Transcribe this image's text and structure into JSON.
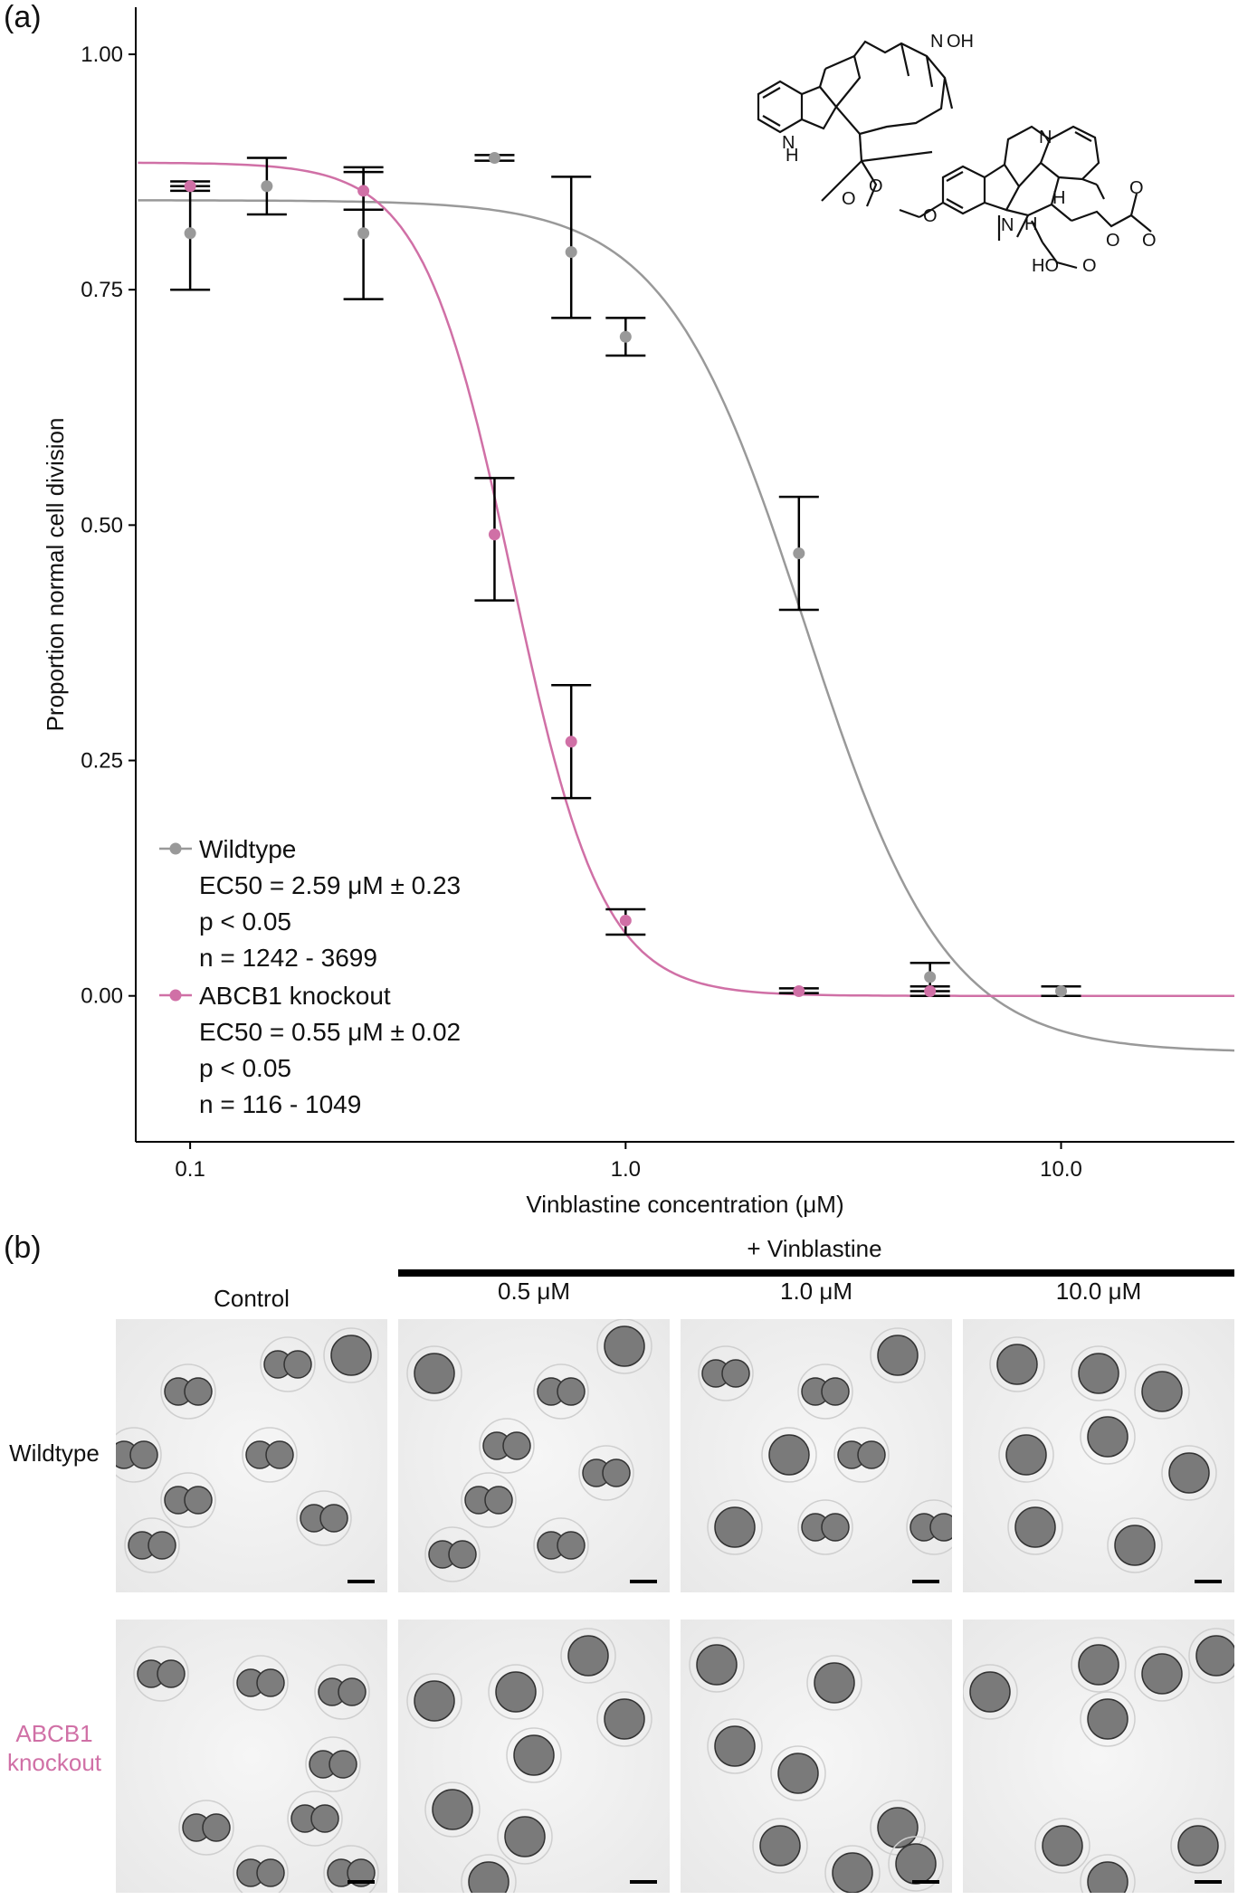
{
  "panel_a_label": "(a)",
  "panel_b_label": "(b)",
  "chart_data": {
    "type": "scatter",
    "xscale": "log",
    "xlabel": "Vinblastine concentration (μM)",
    "ylabel": "Proportion normal cell division",
    "xlim": [
      0.075,
      25
    ],
    "ylim": [
      -0.155,
      1.05
    ],
    "x_ticks": [
      0.1,
      1.0,
      10.0
    ],
    "x_tick_labels": [
      "0.1",
      "1.0",
      "10.0"
    ],
    "y_ticks": [
      0.0,
      0.25,
      0.5,
      0.75,
      1.0
    ],
    "y_tick_labels": [
      "0.00",
      "0.25",
      "0.50",
      "0.75",
      "1.00"
    ],
    "grid": false,
    "legend_position": "bottom-left",
    "series": [
      {
        "name": "Wildtype",
        "color": "#999999",
        "points": [
          {
            "x": 0.1,
            "y": 0.81,
            "lo": 0.75,
            "hi": 0.86
          },
          {
            "x": 0.15,
            "y": 0.86,
            "lo": 0.83,
            "hi": 0.89
          },
          {
            "x": 0.25,
            "y": 0.81,
            "lo": 0.74,
            "hi": 0.88
          },
          {
            "x": 0.5,
            "y": 0.89,
            "lo": 0.887,
            "hi": 0.893
          },
          {
            "x": 0.75,
            "y": 0.79,
            "lo": 0.72,
            "hi": 0.87
          },
          {
            "x": 1.0,
            "y": 0.7,
            "lo": 0.68,
            "hi": 0.72
          },
          {
            "x": 2.5,
            "y": 0.47,
            "lo": 0.41,
            "hi": 0.53
          },
          {
            "x": 5.0,
            "y": 0.02,
            "lo": 0.005,
            "hi": 0.035
          },
          {
            "x": 10.0,
            "y": 0.005,
            "lo": 0.0,
            "hi": 0.01
          }
        ],
        "fit": {
          "top": 0.845,
          "bottom": -0.06,
          "ec50": 2.59,
          "hill": 2.7
        },
        "legend_lines": [
          "EC50 = 2.59 μM ± 0.23",
          "p < 0.05",
          "n = 1242 - 3699"
        ]
      },
      {
        "name": "ABCB1 knockout",
        "color": "#d070a6",
        "points": [
          {
            "x": 0.1,
            "y": 0.86,
            "lo": 0.855,
            "hi": 0.865
          },
          {
            "x": 0.25,
            "y": 0.855,
            "lo": 0.835,
            "hi": 0.875
          },
          {
            "x": 0.5,
            "y": 0.49,
            "lo": 0.42,
            "hi": 0.55
          },
          {
            "x": 0.75,
            "y": 0.27,
            "lo": 0.21,
            "hi": 0.33
          },
          {
            "x": 1.0,
            "y": 0.08,
            "lo": 0.065,
            "hi": 0.092
          },
          {
            "x": 2.5,
            "y": 0.005,
            "lo": 0.003,
            "hi": 0.008
          },
          {
            "x": 5.0,
            "y": 0.005,
            "lo": 0.0,
            "hi": 0.01
          }
        ],
        "fit": {
          "top": 0.885,
          "bottom": 0.0,
          "ec50": 0.55,
          "hill": 4.2
        },
        "legend_lines": [
          "EC50 = 0.55 μM ± 0.02",
          "p < 0.05",
          "n = 116 - 1049"
        ]
      }
    ]
  },
  "panel_b": {
    "group_label": "+ Vinblastine",
    "columns": [
      "Control",
      "0.5 μM",
      "1.0 μM",
      "10.0 μM"
    ],
    "rows": [
      {
        "label": "Wildtype",
        "color": "#111111"
      },
      {
        "label": "ABCB1\nknockout",
        "color": "#d070a6"
      }
    ]
  }
}
